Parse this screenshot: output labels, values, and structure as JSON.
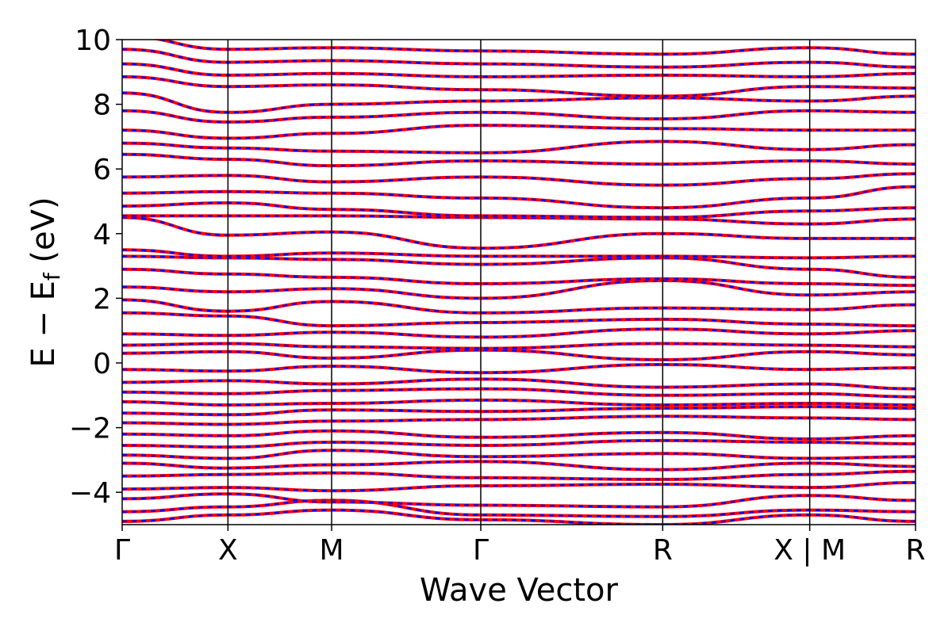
{
  "chart_data": {
    "type": "line",
    "title": "",
    "xlabel": "Wave Vector",
    "ylabel": "E − E",
    "ylabel_subscript": "f",
    "ylabel_unit": " (eV)",
    "ylim": [
      -5,
      10
    ],
    "yticks": [
      -4,
      -2,
      0,
      2,
      4,
      6,
      8,
      10
    ],
    "ytick_labels": [
      "−4",
      "−2",
      "0",
      "2",
      "4",
      "6",
      "8",
      "10"
    ],
    "xlim": [
      0,
      7.5
    ],
    "kpoints": [
      {
        "label": "Γ",
        "x": 0.0
      },
      {
        "label": "X",
        "x": 1.0
      },
      {
        "label": "M",
        "x": 1.98
      },
      {
        "label": "Γ",
        "x": 3.39
      },
      {
        "label": "R",
        "x": 5.11
      },
      {
        "label": "X | M",
        "x": 6.5
      },
      {
        "label": "R",
        "x": 7.5
      }
    ],
    "series": [
      {
        "style": "solid",
        "color": "#ff0000"
      },
      {
        "style": "dashed",
        "color": "#0000ff"
      }
    ],
    "bands": [
      [
        -4.9,
        -4.7,
        -4.55,
        -4.85,
        -5.0,
        -4.7,
        -4.9
      ],
      [
        -4.6,
        -4.45,
        -4.25,
        -4.7,
        -4.75,
        -4.55,
        -4.6
      ],
      [
        -4.2,
        -4.05,
        -4.3,
        -4.4,
        -4.45,
        -4.1,
        -4.25
      ],
      [
        -3.9,
        -3.85,
        -3.95,
        -3.8,
        -3.75,
        -3.85,
        -3.7
      ],
      [
        -3.5,
        -3.45,
        -3.4,
        -3.55,
        -3.6,
        -3.45,
        -3.35
      ],
      [
        -3.1,
        -3.25,
        -3.15,
        -3.05,
        -3.3,
        -3.1,
        -3.2
      ],
      [
        -2.85,
        -2.95,
        -2.7,
        -2.9,
        -2.8,
        -2.95,
        -2.9
      ],
      [
        -2.55,
        -2.6,
        -2.45,
        -2.55,
        -2.4,
        -2.45,
        -2.5
      ],
      [
        -2.2,
        -2.25,
        -2.1,
        -2.3,
        -2.15,
        -2.35,
        -2.25
      ],
      [
        -1.85,
        -1.9,
        -1.8,
        -1.75,
        -1.65,
        -1.7,
        -1.75
      ],
      [
        -1.55,
        -1.6,
        -1.45,
        -1.5,
        -1.4,
        -1.35,
        -1.4
      ],
      [
        -1.2,
        -1.3,
        -1.25,
        -1.15,
        -1.3,
        -1.25,
        -1.3
      ],
      [
        -0.9,
        -0.95,
        -0.85,
        -0.8,
        -1.0,
        -0.95,
        -1.05
      ],
      [
        -0.6,
        -0.55,
        -0.65,
        -0.5,
        -0.75,
        -0.65,
        -0.8
      ],
      [
        -0.2,
        -0.25,
        -0.1,
        -0.3,
        -0.05,
        -0.2,
        -0.15
      ],
      [
        0.3,
        0.35,
        0.15,
        0.4,
        0.1,
        0.35,
        0.25
      ],
      [
        0.55,
        0.6,
        0.5,
        0.45,
        0.6,
        0.55,
        0.5
      ],
      [
        0.9,
        0.85,
        0.95,
        0.8,
        1.05,
        0.9,
        1.0
      ],
      [
        1.55,
        1.45,
        1.15,
        1.25,
        1.35,
        1.2,
        1.15
      ],
      [
        1.95,
        1.6,
        1.9,
        1.55,
        1.7,
        1.65,
        1.8
      ],
      [
        2.35,
        2.2,
        2.3,
        2.0,
        2.55,
        2.1,
        2.2
      ],
      [
        2.9,
        2.75,
        2.65,
        2.45,
        2.6,
        2.45,
        2.4
      ],
      [
        3.3,
        3.25,
        3.2,
        3.05,
        3.25,
        2.9,
        2.65
      ],
      [
        3.5,
        3.3,
        3.4,
        3.3,
        3.3,
        3.25,
        3.3
      ],
      [
        4.5,
        3.95,
        4.05,
        3.55,
        4.0,
        3.85,
        3.85
      ],
      [
        4.55,
        4.55,
        4.55,
        4.5,
        4.45,
        4.3,
        4.45
      ],
      [
        4.85,
        4.95,
        4.75,
        4.55,
        4.5,
        4.7,
        4.8
      ],
      [
        5.25,
        5.3,
        5.25,
        5.1,
        4.8,
        5.1,
        5.45
      ],
      [
        5.75,
        5.8,
        5.6,
        5.75,
        5.5,
        5.7,
        5.85
      ],
      [
        6.45,
        6.3,
        6.1,
        6.25,
        6.15,
        6.25,
        6.15
      ],
      [
        6.8,
        6.65,
        6.55,
        6.5,
        6.85,
        6.6,
        6.75
      ],
      [
        7.2,
        6.95,
        7.1,
        7.35,
        7.25,
        7.2,
        7.2
      ],
      [
        7.8,
        7.45,
        7.6,
        7.75,
        7.55,
        7.8,
        7.75
      ],
      [
        8.35,
        7.75,
        8.0,
        8.1,
        8.2,
        8.1,
        8.25
      ],
      [
        8.85,
        8.55,
        8.6,
        8.45,
        8.25,
        8.55,
        8.5
      ],
      [
        9.25,
        8.9,
        8.95,
        8.85,
        8.9,
        8.85,
        8.95
      ],
      [
        9.7,
        9.3,
        9.35,
        9.25,
        9.15,
        9.3,
        9.15
      ],
      [
        10.1,
        9.7,
        9.75,
        9.65,
        9.55,
        9.75,
        9.55
      ]
    ]
  }
}
